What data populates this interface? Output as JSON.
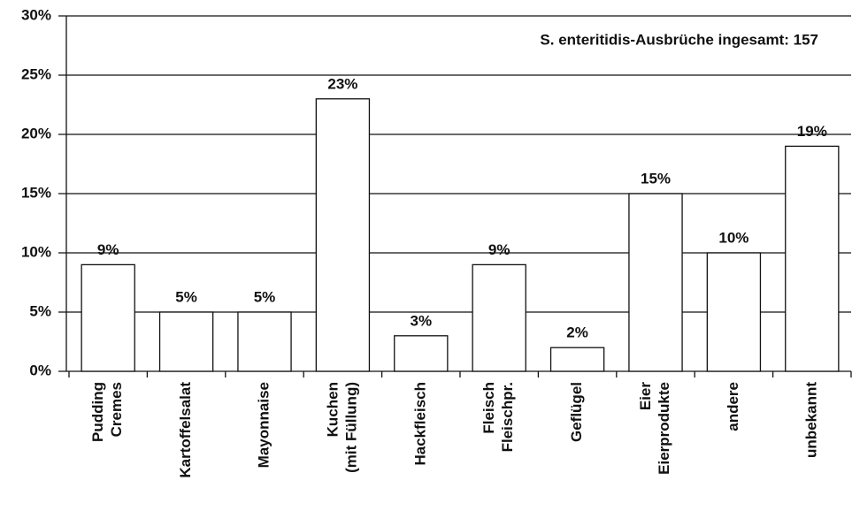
{
  "chart_data": {
    "type": "bar",
    "annotation": "S. enteritidis-Ausbrüche ingesamt: 157",
    "categories": [
      [
        "Pudding",
        "Cremes"
      ],
      [
        "Kartoffelsalat"
      ],
      [
        "Mayonnaise"
      ],
      [
        "Kuchen",
        "(mit Füllung)"
      ],
      [
        "Hackfleisch"
      ],
      [
        "Fleisch",
        "Fleischpr."
      ],
      [
        "Geflügel"
      ],
      [
        "Eier",
        "Eierprodukte"
      ],
      [
        "andere"
      ],
      [
        "unbekannt"
      ]
    ],
    "values": [
      9,
      5,
      5,
      23,
      3,
      9,
      2,
      15,
      10,
      19
    ],
    "value_labels": [
      "9%",
      "5%",
      "5%",
      "23%",
      "3%",
      "9%",
      "2%",
      "15%",
      "10%",
      "19%"
    ],
    "color": "#ffffff",
    "ylim": [
      0,
      30
    ],
    "yticks": [
      {
        "value": 0,
        "label": "0%"
      },
      {
        "value": 5,
        "label": "5%"
      },
      {
        "value": 10,
        "label": "10%"
      },
      {
        "value": 15,
        "label": "15%"
      },
      {
        "value": 20,
        "label": "20%"
      },
      {
        "value": 25,
        "label": "25%"
      },
      {
        "value": 30,
        "label": "30%"
      }
    ],
    "grid": true
  }
}
